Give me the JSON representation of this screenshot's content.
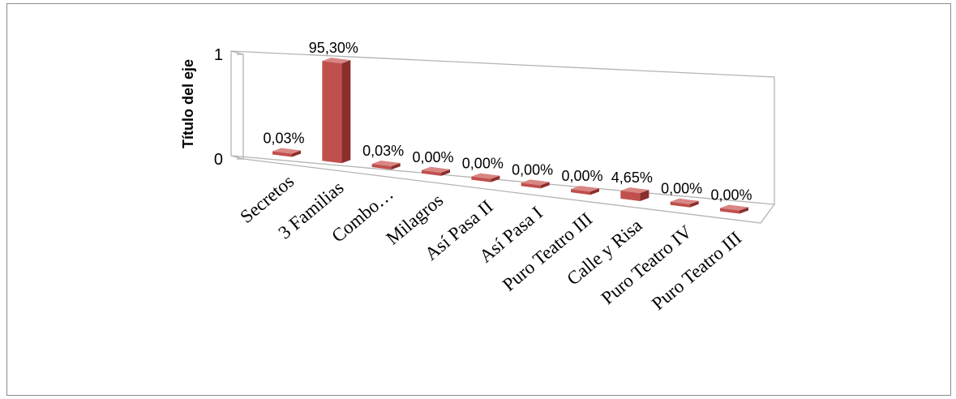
{
  "chart_data": {
    "type": "bar",
    "title": "",
    "ylabel": "Título del eje",
    "xlabel": "",
    "ylim": [
      0,
      1
    ],
    "yticks": [
      "0",
      "1"
    ],
    "categories": [
      "Secretos",
      "3 Familias",
      "Combo…",
      "Milagros",
      "Así Pasa II",
      "Así Pasa I",
      "Puro Teatro III",
      "Calle y Risa",
      "Puro Teatro IV",
      "Puro Teatro III"
    ],
    "values": [
      0.0003,
      0.953,
      0.0003,
      0.0,
      0.0,
      0.0,
      0.0,
      0.0465,
      0.0,
      0.0
    ],
    "data_labels": [
      "0,03%",
      "95,30%",
      "0,03%",
      "0,00%",
      "0,00%",
      "0,00%",
      "0,00%",
      "4,65%",
      "0,00%",
      "0,00%"
    ],
    "grid": false,
    "legend": "none",
    "style": "3d-column",
    "colors": {
      "bar_front": "#c0504d",
      "bar_side": "#8b2e2c",
      "bar_top": "#d98683",
      "wall": "#b3b3b3"
    }
  }
}
